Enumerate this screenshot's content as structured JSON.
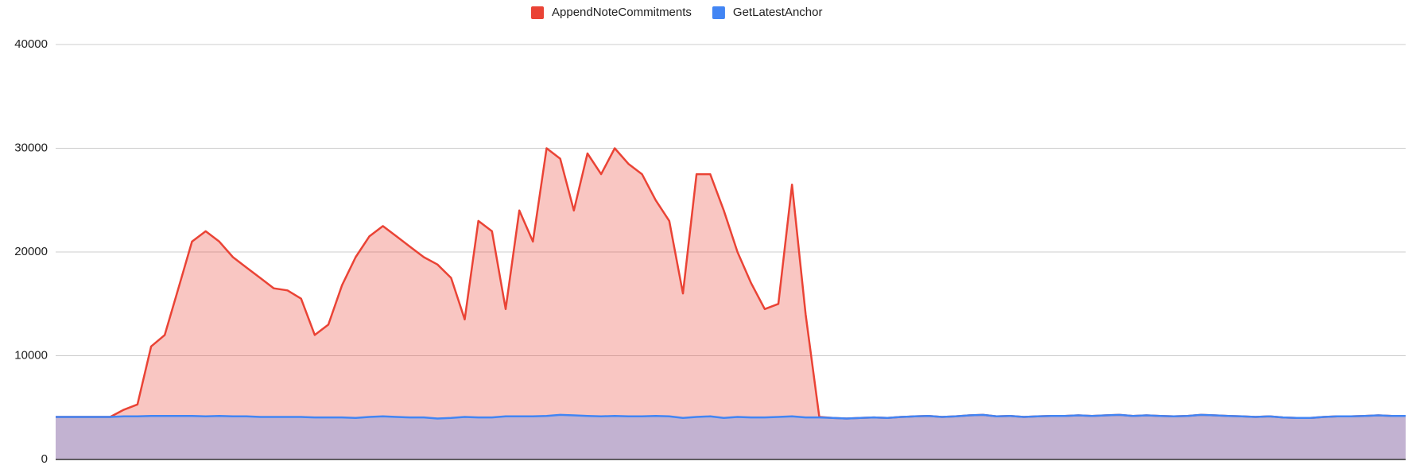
{
  "chart_data": {
    "type": "area",
    "series": [
      {
        "name": "AppendNoteCommitments",
        "color": "#ea4335",
        "values": [
          4100,
          4100,
          4100,
          4100,
          4100,
          4800,
          5300,
          10900,
          12000,
          16500,
          21000,
          22000,
          21000,
          19500,
          18500,
          17500,
          16500,
          16300,
          15500,
          12000,
          13000,
          16800,
          19500,
          21500,
          22500,
          21500,
          20500,
          19500,
          18800,
          17500,
          13500,
          23000,
          22000,
          14500,
          24000,
          21000,
          30000,
          29000,
          24000,
          29500,
          27500,
          30000,
          28500,
          27500,
          25000,
          23000,
          16000,
          27500,
          27500,
          24000,
          20000,
          17000,
          14500,
          15000,
          26500,
          14000,
          4100,
          4000,
          3950,
          4000,
          4050,
          4000,
          4100,
          4150,
          4200,
          4100,
          4150,
          4250,
          4300,
          4150,
          4200,
          4100,
          4150,
          4200,
          4200,
          4250,
          4200,
          4250,
          4300,
          4200,
          4250,
          4200,
          4150,
          4200,
          4300,
          4250,
          4200,
          4150,
          4100,
          4150,
          4050,
          4000,
          4000,
          4100,
          4150,
          4150,
          4200,
          4250,
          4200,
          4200
        ]
      },
      {
        "name": "GetLatestAnchor",
        "color": "#4285f4",
        "values": [
          4100,
          4100,
          4100,
          4100,
          4100,
          4150,
          4150,
          4200,
          4200,
          4200,
          4200,
          4150,
          4200,
          4150,
          4150,
          4100,
          4100,
          4100,
          4100,
          4050,
          4050,
          4050,
          4000,
          4100,
          4150,
          4100,
          4050,
          4050,
          3950,
          4000,
          4100,
          4050,
          4050,
          4150,
          4150,
          4150,
          4200,
          4300,
          4250,
          4200,
          4150,
          4200,
          4150,
          4150,
          4200,
          4150,
          4000,
          4100,
          4150,
          4000,
          4100,
          4050,
          4050,
          4100,
          4150,
          4050,
          4050,
          4000,
          3950,
          4000,
          4050,
          4000,
          4100,
          4150,
          4200,
          4100,
          4150,
          4250,
          4300,
          4150,
          4200,
          4100,
          4150,
          4200,
          4200,
          4250,
          4200,
          4250,
          4300,
          4200,
          4250,
          4200,
          4150,
          4200,
          4300,
          4250,
          4200,
          4150,
          4100,
          4150,
          4050,
          4000,
          4000,
          4100,
          4150,
          4150,
          4200,
          4250,
          4200,
          4200
        ]
      }
    ],
    "ylim": [
      0,
      40000
    ],
    "yticks": [
      0,
      10000,
      20000,
      30000,
      40000
    ],
    "grid": true,
    "legend": "top"
  }
}
